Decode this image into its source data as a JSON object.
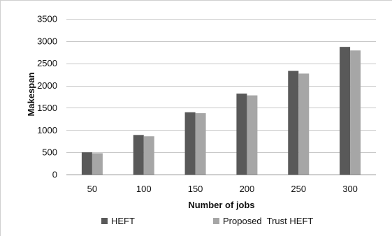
{
  "chart_data": {
    "type": "bar",
    "title": "",
    "xlabel": "Number of jobs",
    "ylabel": "Makespan",
    "categories": [
      "50",
      "100",
      "150",
      "200",
      "250",
      "300"
    ],
    "ylim": [
      0,
      3500
    ],
    "yticks": [
      0,
      500,
      1000,
      1500,
      2000,
      2500,
      3000,
      3500
    ],
    "grid": true,
    "legend_position": "bottom",
    "series": [
      {
        "name": "HEFT",
        "color": "#595959",
        "values": [
          500,
          890,
          1400,
          1820,
          2330,
          2870
        ]
      },
      {
        "name": "Proposed  Trust HEFT",
        "color": "#a6a6a6",
        "values": [
          480,
          860,
          1380,
          1780,
          2270,
          2790
        ]
      }
    ]
  }
}
